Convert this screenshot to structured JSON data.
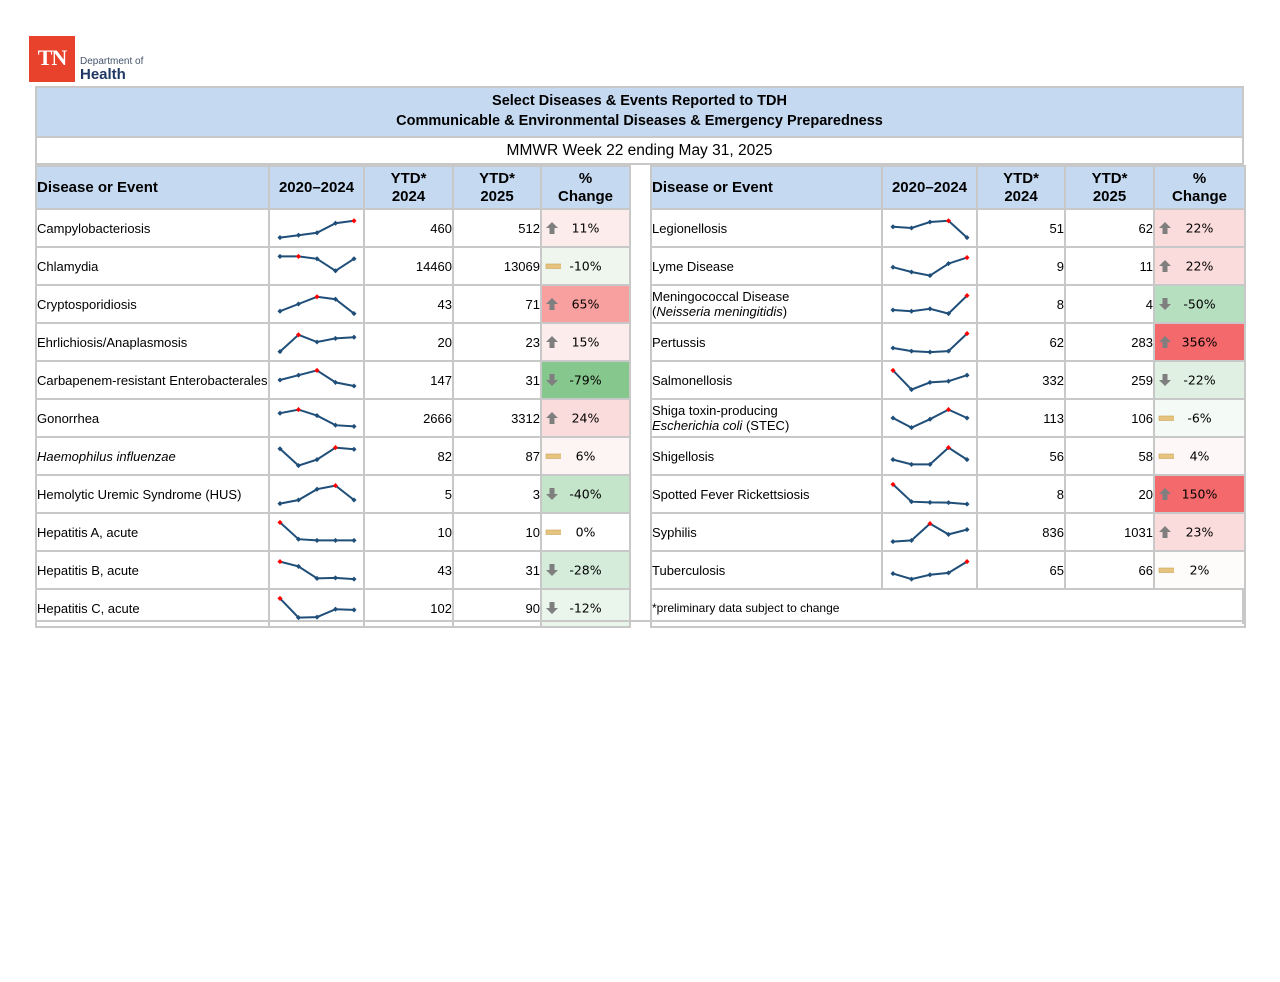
{
  "logo": {
    "mark": "TN",
    "line1": "Department of",
    "line2": "Health"
  },
  "report": {
    "title_line1": "Select Diseases & Events Reported to TDH",
    "title_line2": "Communicable & Environmental Diseases & Emergency Preparedness",
    "week": "MMWR Week 22 ending May 31, 2025",
    "footnote": "*preliminary data subject to change"
  },
  "columns": {
    "name": "Disease or Event",
    "trend": "2020–2024",
    "ytd_prev_l1": "YTD*",
    "ytd_prev_l2": "2024",
    "ytd_curr_l1": "YTD*",
    "ytd_curr_l2": "2025",
    "pct_l1": "%",
    "pct_l2": "Change"
  },
  "colors": {
    "header_bg": "#c5d9f1",
    "border": "#c8c8c8",
    "sparkline": "#1f4e79",
    "sparkline_max": "#ff0000",
    "arrow": "#7f7f7f",
    "flat_bar": "#e6c47f"
  },
  "left_rows": [
    {
      "name": "Campylobacteriosis",
      "italic": false,
      "trend": [
        10,
        20,
        30,
        70,
        80
      ],
      "max_idx": 4,
      "ytd2024": "460",
      "ytd2025": "512",
      "icon": "up",
      "pct": "11%",
      "bg": "#fdecec"
    },
    {
      "name": "Chlamydia",
      "italic": false,
      "trend": [
        90,
        90,
        80,
        30,
        80
      ],
      "max_idx": 1,
      "ytd2024": "14460",
      "ytd2025": "13069",
      "icon": "flat",
      "pct": "-10%",
      "bg": "#eef6ee"
    },
    {
      "name": "Cryptosporidiosis",
      "italic": false,
      "trend": [
        20,
        50,
        80,
        70,
        10
      ],
      "max_idx": 2,
      "ytd2024": "43",
      "ytd2025": "71",
      "icon": "up",
      "pct": "65%",
      "bg": "#f8a09f"
    },
    {
      "name": "Ehrlichiosis/Anaplasmosis",
      "italic": false,
      "trend": [
        10,
        80,
        50,
        65,
        70
      ],
      "max_idx": 1,
      "ytd2024": "20",
      "ytd2025": "23",
      "icon": "up",
      "pct": "15%",
      "bg": "#fdecec"
    },
    {
      "name": "Carbapenem-resistant Enterobacterales",
      "italic": false,
      "trend": [
        50,
        70,
        90,
        40,
        25
      ],
      "max_idx": 2,
      "ytd2024": "147",
      "ytd2025": "31",
      "icon": "down",
      "pct": "-79%",
      "bg": "#86c78d"
    },
    {
      "name": "Gonorrhea",
      "italic": false,
      "trend": [
        70,
        85,
        60,
        20,
        15
      ],
      "max_idx": 1,
      "ytd2024": "2666",
      "ytd2025": "3312",
      "icon": "up",
      "pct": "24%",
      "bg": "#fbdcdc"
    },
    {
      "name": "Haemophilus influenzae",
      "italic": true,
      "trend": [
        80,
        10,
        35,
        85,
        78
      ],
      "max_idx": 3,
      "ytd2024": "82",
      "ytd2025": "87",
      "icon": "flat",
      "pct": "6%",
      "bg": "#fdf5f4"
    },
    {
      "name": "Hemolytic Uremic Syndrome (HUS)",
      "italic": false,
      "trend": [
        10,
        25,
        70,
        85,
        25
      ],
      "max_idx": 3,
      "ytd2024": "5",
      "ytd2025": "3",
      "icon": "down",
      "pct": "-40%",
      "bg": "#c5e5cb"
    },
    {
      "name": "Hepatitis A, acute",
      "italic": false,
      "trend": [
        90,
        20,
        15,
        15,
        15
      ],
      "max_idx": 0,
      "ytd2024": "10",
      "ytd2025": "10",
      "icon": "flat",
      "pct": "0%",
      "bg": "#ffffff"
    },
    {
      "name": "Hepatitis B, acute",
      "italic": false,
      "trend": [
        85,
        65,
        15,
        17,
        12
      ],
      "max_idx": 0,
      "ytd2024": "43",
      "ytd2025": "31",
      "icon": "down",
      "pct": "-28%",
      "bg": "#d5ecda"
    },
    {
      "name": "Hepatitis C, acute",
      "italic": false,
      "trend": [
        90,
        10,
        12,
        45,
        42
      ],
      "max_idx": 0,
      "ytd2024": "102",
      "ytd2025": "90",
      "icon": "down",
      "pct": "-12%",
      "bg": "#eaf5ec"
    }
  ],
  "right_rows": [
    {
      "name": "Legionellosis",
      "italic": false,
      "trend": [
        55,
        50,
        75,
        80,
        10
      ],
      "max_idx": 3,
      "ytd2024": "51",
      "ytd2025": "62",
      "icon": "up",
      "pct": "22%",
      "bg": "#fbdcdc"
    },
    {
      "name": "Lyme Disease",
      "italic": false,
      "trend": [
        45,
        25,
        10,
        60,
        85
      ],
      "max_idx": 4,
      "ytd2024": "9",
      "ytd2025": "11",
      "icon": "up",
      "pct": "22%",
      "bg": "#fbdcdc"
    },
    {
      "name": "Meningococcal Disease",
      "name2": "Neisseria meningitidis",
      "italic": false,
      "trend": [
        25,
        20,
        30,
        10,
        85
      ],
      "max_idx": 4,
      "ytd2024": "8",
      "ytd2025": "4",
      "icon": "down",
      "pct": "-50%",
      "bg": "#b6dfbf"
    },
    {
      "name": "Pertussis",
      "italic": false,
      "trend": [
        25,
        12,
        8,
        12,
        85
      ],
      "max_idx": 4,
      "ytd2024": "62",
      "ytd2025": "283",
      "icon": "up",
      "pct": "356%",
      "bg": "#f4696b"
    },
    {
      "name": "Salmonellosis",
      "italic": false,
      "trend": [
        90,
        10,
        40,
        45,
        70
      ],
      "max_idx": 0,
      "ytd2024": "332",
      "ytd2025": "259",
      "icon": "down",
      "pct": "-22%",
      "bg": "#e0f1e3"
    },
    {
      "name": "Shiga toxin-producing",
      "name2": "Escherichia coli",
      "name2_suffix": " (STEC)",
      "italic": false,
      "trend": [
        50,
        10,
        45,
        85,
        50
      ],
      "max_idx": 3,
      "ytd2024": "113",
      "ytd2025": "106",
      "icon": "flat",
      "pct": "-6%",
      "bg": "#f4faf5"
    },
    {
      "name": "Shigellosis",
      "italic": false,
      "trend": [
        35,
        15,
        15,
        85,
        35
      ],
      "max_idx": 3,
      "ytd2024": "56",
      "ytd2025": "58",
      "icon": "flat",
      "pct": "4%",
      "bg": "#fdf8f7"
    },
    {
      "name": "Spotted Fever Rickettsiosis",
      "italic": false,
      "trend": [
        90,
        18,
        15,
        14,
        8
      ],
      "max_idx": 0,
      "ytd2024": "8",
      "ytd2025": "20",
      "icon": "up",
      "pct": "150%",
      "bg": "#f4696b"
    },
    {
      "name": "Syphilis",
      "italic": false,
      "trend": [
        10,
        15,
        85,
        40,
        60
      ],
      "max_idx": 2,
      "ytd2024": "836",
      "ytd2025": "1031",
      "icon": "up",
      "pct": "23%",
      "bg": "#fbdcdc"
    },
    {
      "name": "Tuberculosis",
      "italic": false,
      "trend": [
        35,
        12,
        30,
        38,
        85
      ],
      "max_idx": 4,
      "ytd2024": "65",
      "ytd2025": "66",
      "icon": "flat",
      "pct": "2%",
      "bg": "#fefbfb"
    }
  ]
}
